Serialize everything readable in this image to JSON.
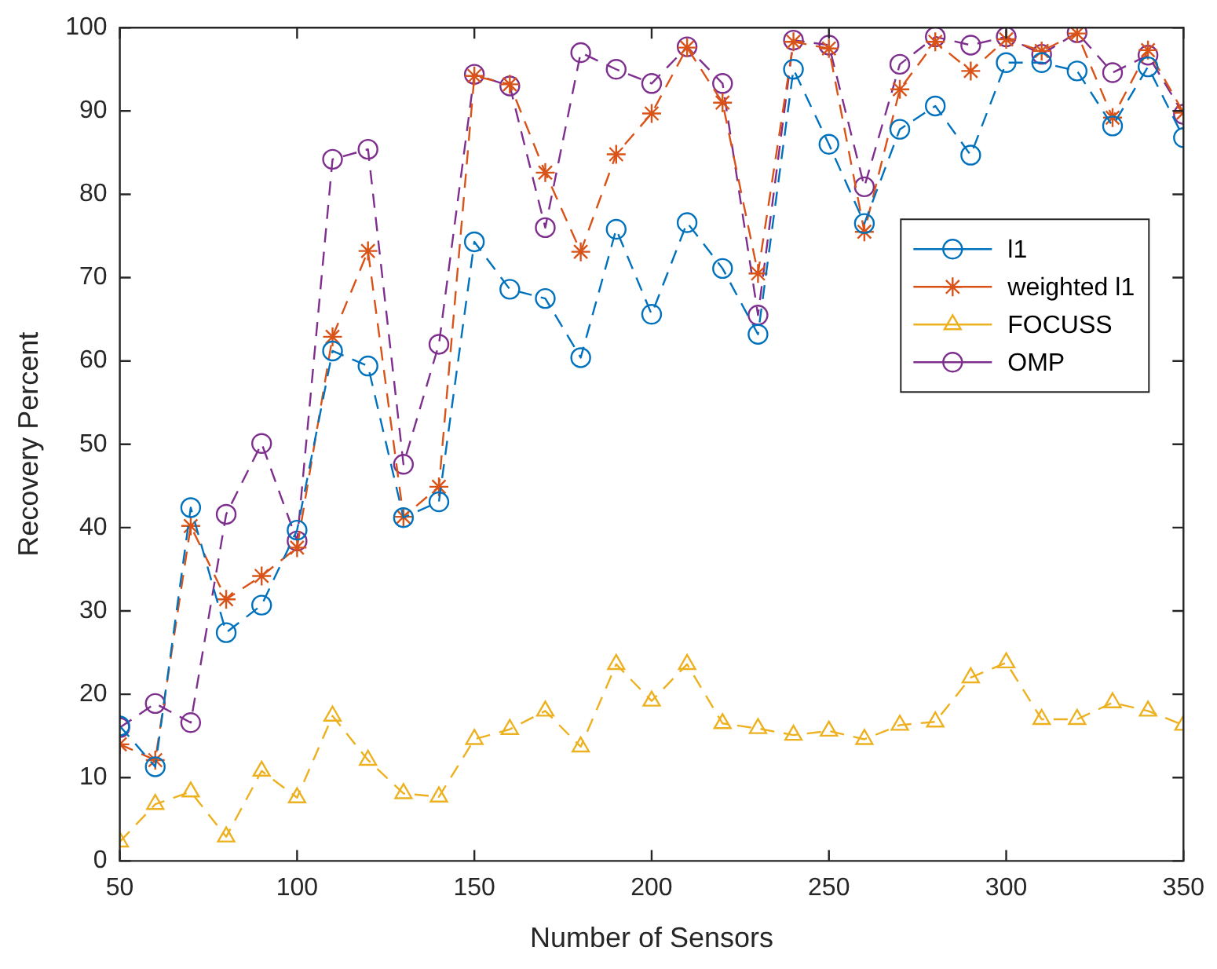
{
  "chart_data": {
    "type": "line",
    "xlabel": "Number of Sensors",
    "ylabel": "Recovery Percent",
    "x": [
      50,
      60,
      70,
      80,
      90,
      100,
      110,
      120,
      130,
      140,
      150,
      160,
      170,
      180,
      190,
      200,
      210,
      220,
      230,
      240,
      250,
      260,
      270,
      280,
      290,
      300,
      310,
      320,
      330,
      340,
      350
    ],
    "xlim": [
      50,
      350
    ],
    "xticks": [
      50,
      100,
      150,
      200,
      250,
      300,
      350
    ],
    "ylim": [
      0,
      100
    ],
    "yticks": [
      0,
      10,
      20,
      30,
      40,
      50,
      60,
      70,
      80,
      90,
      100
    ],
    "grid": false,
    "legend": "right",
    "line_style": "dashed",
    "series": [
      {
        "name": "l1",
        "color": "#0072bd",
        "marker": "circle",
        "values": [
          16.2,
          11.3,
          42.4,
          27.4,
          30.7,
          39.7,
          61.2,
          59.4,
          41.2,
          43.1,
          74.3,
          68.6,
          67.5,
          60.4,
          75.8,
          65.6,
          76.6,
          71.1,
          63.2,
          95,
          86,
          76.5,
          87.8,
          90.6,
          84.7,
          95.8,
          95.8,
          94.8,
          88.2,
          95.3,
          86.8
        ]
      },
      {
        "name": "weighted l1",
        "color": "#d95319",
        "marker": "cross",
        "values": [
          14,
          12.1,
          40.2,
          31.4,
          34.2,
          37.6,
          62.9,
          73.2,
          41.3,
          44.9,
          94.2,
          93.2,
          82.6,
          73.1,
          84.8,
          89.7,
          97.6,
          91,
          70.5,
          98.3,
          97.5,
          75.5,
          92.6,
          98.3,
          94.8,
          98.6,
          97.2,
          99.3,
          89.2,
          97.3,
          89.8
        ]
      },
      {
        "name": "FOCUSS",
        "color": "#edb120",
        "marker": "triangle",
        "values": [
          2.3,
          6.8,
          8.3,
          2.9,
          10.8,
          7.6,
          17.4,
          12.1,
          8.1,
          7.7,
          14.6,
          15.8,
          18,
          13.7,
          23.6,
          19.2,
          23.6,
          16.5,
          15.9,
          15.1,
          15.6,
          14.6,
          16.3,
          16.7,
          22,
          23.8,
          17,
          17,
          19,
          18,
          16.3
        ]
      },
      {
        "name": "OMP",
        "color": "#7e2f8e",
        "marker": "circle",
        "values": [
          16,
          18.9,
          16.6,
          41.6,
          50.1,
          38.4,
          84.2,
          85.4,
          47.6,
          62,
          94.4,
          93,
          76,
          97,
          95,
          93.3,
          97.7,
          93.3,
          65.5,
          98.5,
          97.9,
          80.9,
          95.6,
          98.9,
          97.9,
          98.9,
          96.8,
          99.4,
          94.6,
          96.7,
          89.6
        ]
      }
    ]
  }
}
